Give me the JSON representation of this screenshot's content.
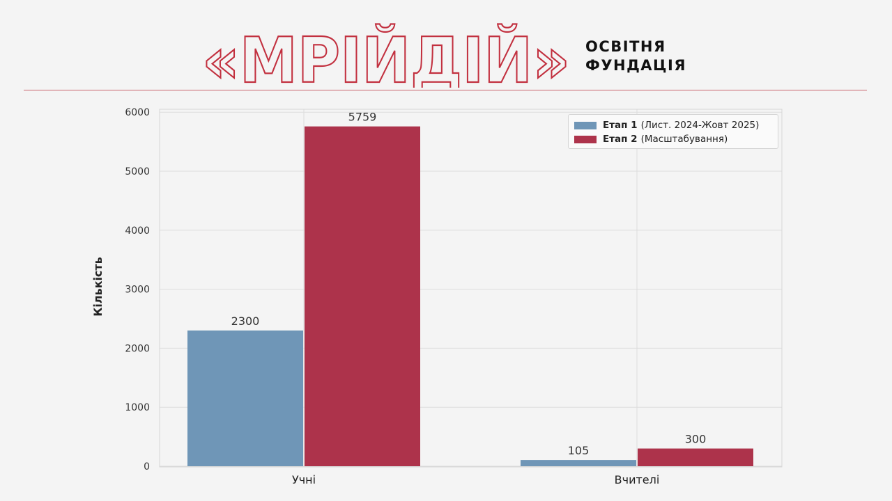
{
  "brand": {
    "logo_text": "«МРІЙДІЙ»",
    "subtitle_line1": "ОСВІТНЯ",
    "subtitle_line2": "ФУНДАЦІЯ",
    "accent_color": "#c2303f"
  },
  "chart_data": {
    "type": "bar",
    "title": "",
    "xlabel": "",
    "ylabel": "Кількість",
    "categories": [
      "Учні",
      "Вчителі"
    ],
    "ylim": [
      0,
      6050
    ],
    "yticks": [
      0,
      1000,
      2000,
      3000,
      4000,
      5000,
      6000
    ],
    "grid": true,
    "legend_position": "top-right",
    "series": [
      {
        "name_bold": "Етап 1",
        "name_rest": "(Лист. 2024-Жовт 2025)",
        "color": "#6f96b7",
        "values": [
          2300,
          105
        ],
        "labels": [
          "2300",
          "105"
        ]
      },
      {
        "name_bold": "Етап 2",
        "name_rest": "(Масштабування)",
        "color": "#ad334b",
        "values": [
          5759,
          300
        ],
        "labels": [
          "5759",
          "300"
        ]
      }
    ]
  }
}
